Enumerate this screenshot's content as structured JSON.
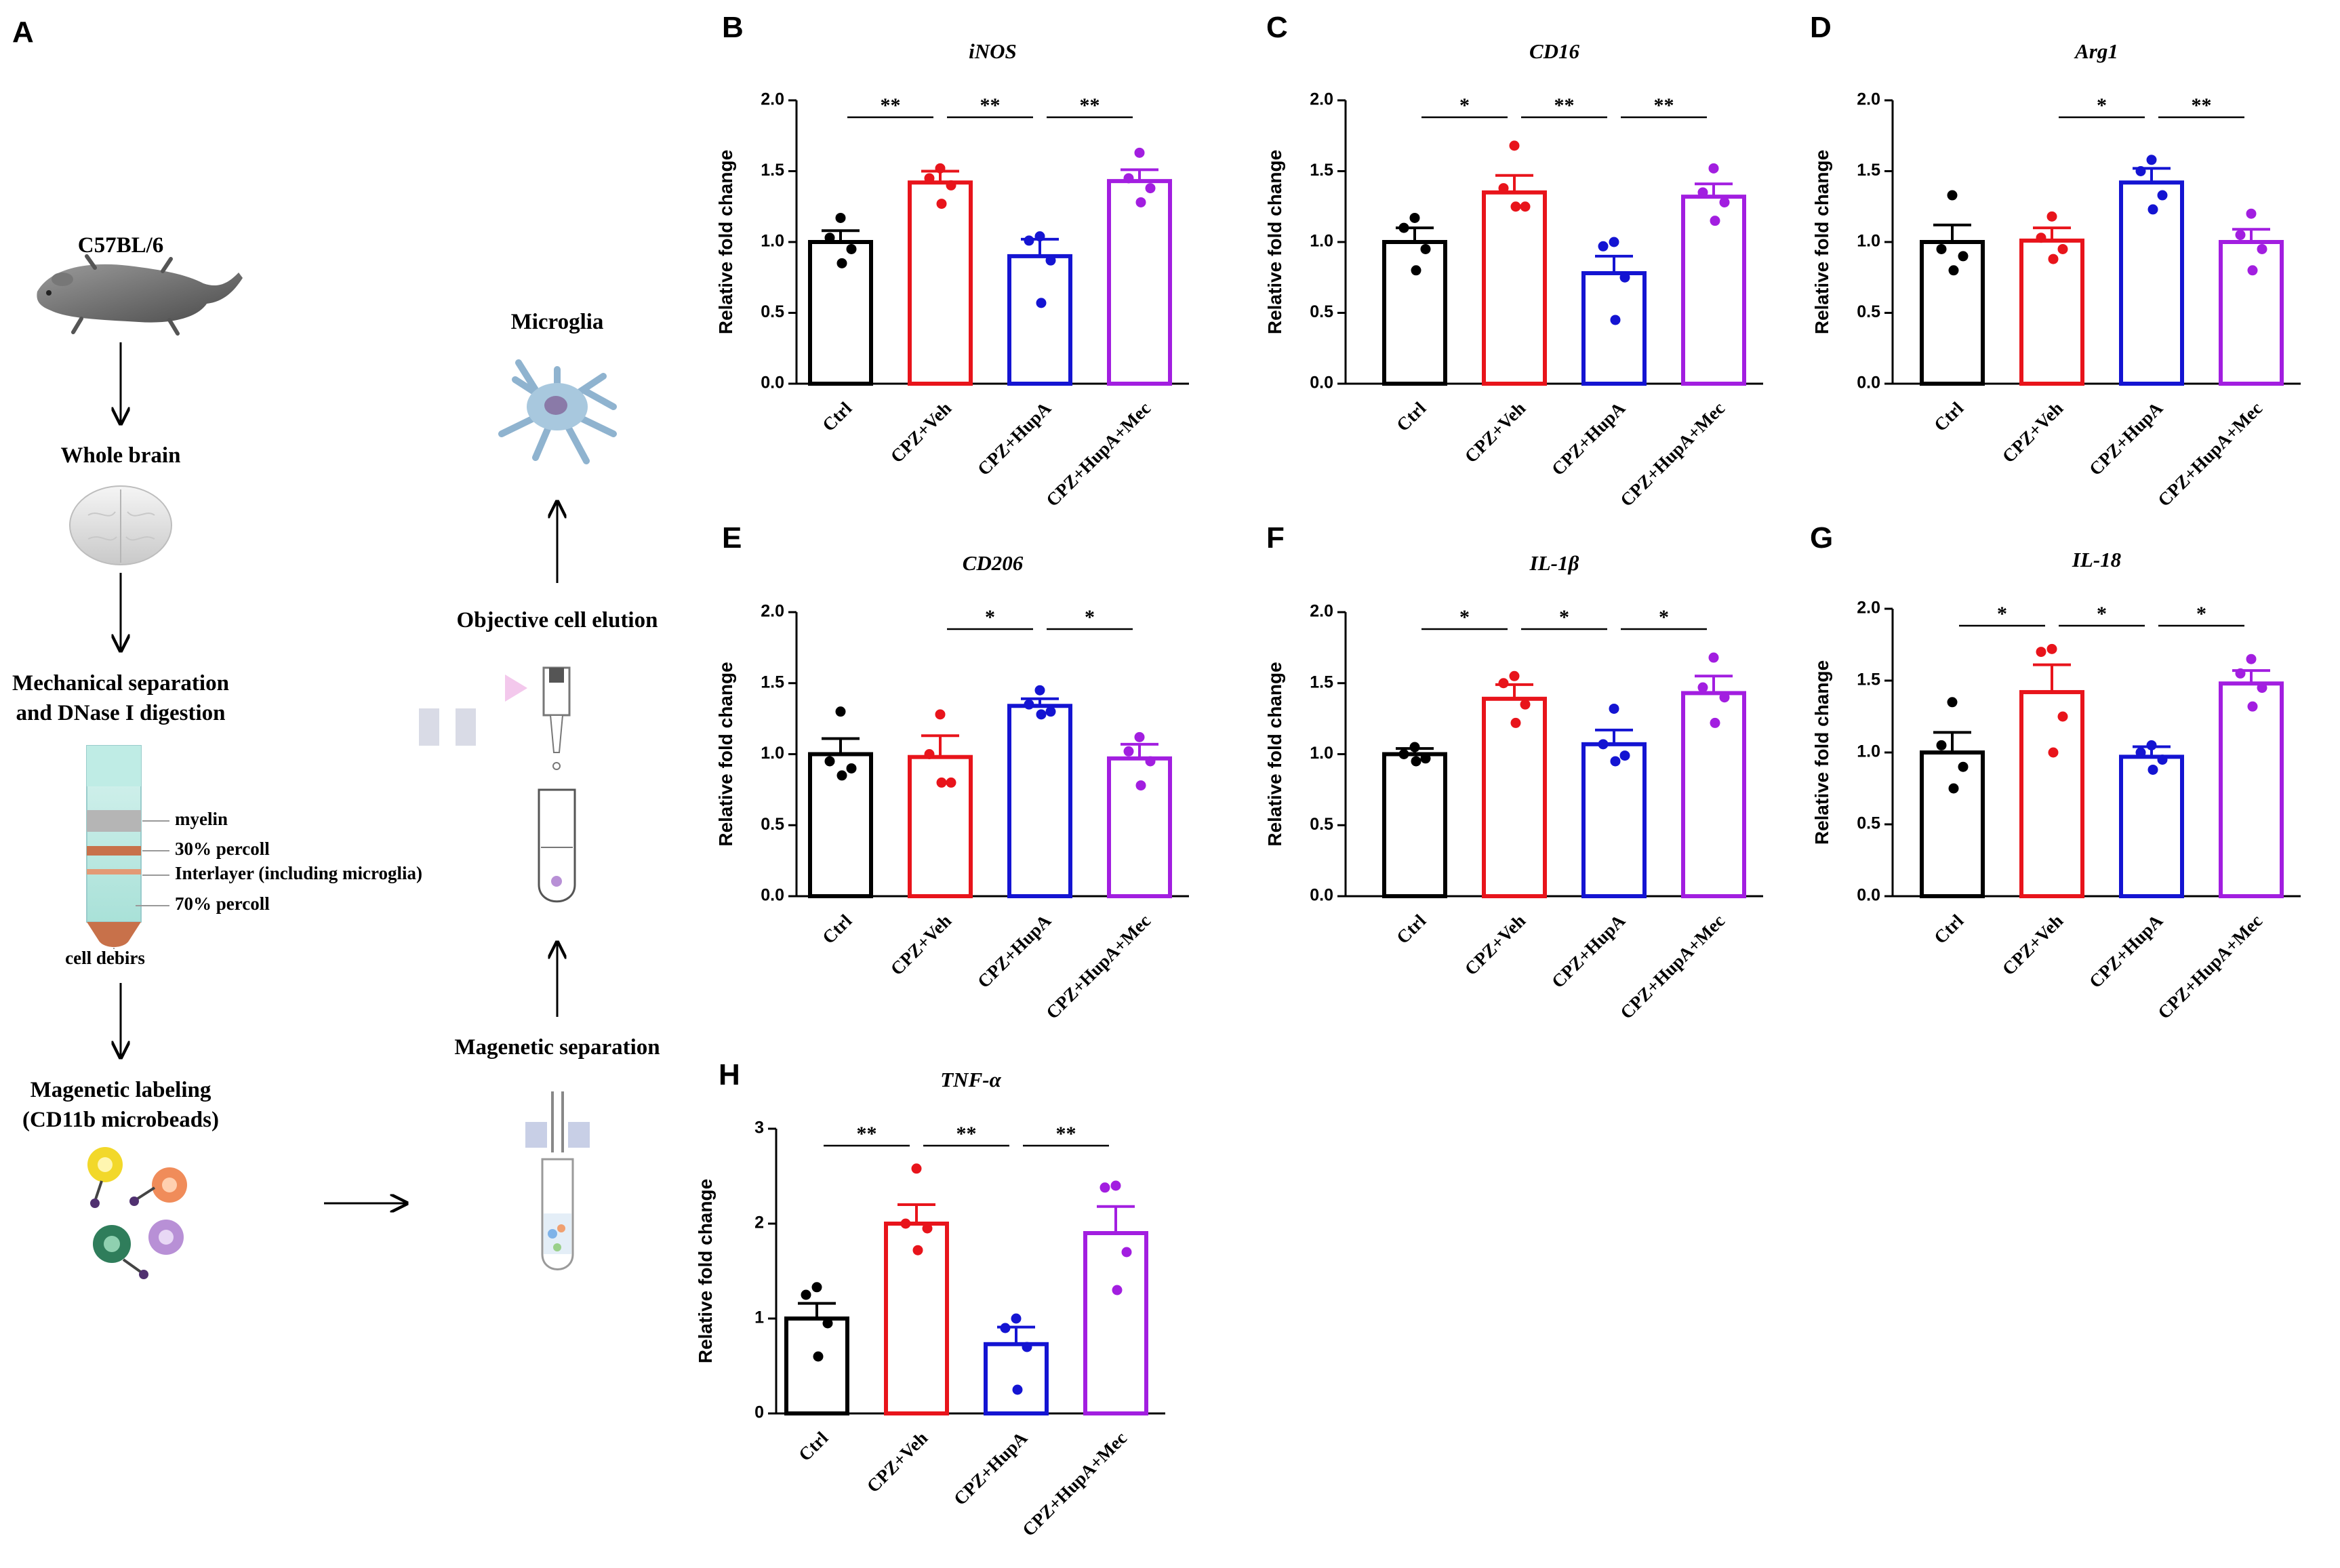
{
  "figure": {
    "panel_a_letter": "A",
    "flowchart": {
      "mouse": "C57BL/6",
      "whole_brain": "Whole brain",
      "mech_sep_line1": "Mechanical separation",
      "mech_sep_line2": "and  DNase I digestion",
      "tube_labels": {
        "myelin": "myelin",
        "percoll30": "30% percoll",
        "interlayer": "Interlayer (including microglia)",
        "percoll70": "70% percoll",
        "debris": "cell debirs"
      },
      "mag_label_line1": "Magenetic  labeling",
      "mag_label_line2": "(CD11b microbeads)",
      "mag_sep": "Magenetic separation",
      "elution": "Objective cell elution",
      "microglia": "Microglia"
    },
    "colors": {
      "Ctrl": "#000000",
      "CPZ+Veh": "#e8141b",
      "CPZ+HupA": "#1414d2",
      "CPZ+HupA+Mec": "#a21ee0"
    }
  },
  "chart_data": [
    {
      "type": "bar",
      "panel": "B",
      "title": "iNOS",
      "ylabel": "Relative fold change",
      "categories": [
        "Ctrl",
        "CPZ+Veh",
        "CPZ+HupA",
        "CPZ+HupA+Mec"
      ],
      "values": [
        1.0,
        1.42,
        0.9,
        1.43
      ],
      "sem": [
        0.08,
        0.08,
        0.12,
        0.08
      ],
      "points": [
        [
          1.17,
          1.03,
          0.95,
          0.85
        ],
        [
          1.52,
          1.45,
          1.4,
          1.27
        ],
        [
          1.04,
          1.01,
          0.87,
          0.57
        ],
        [
          1.63,
          1.45,
          1.38,
          1.28
        ]
      ],
      "ylim": [
        0,
        2.0
      ],
      "yticks": [
        "0.0",
        "0.5",
        "1.0",
        "1.5",
        "2.0"
      ],
      "significance": [
        {
          "from": 0,
          "to": 1,
          "label": "**"
        },
        {
          "from": 1,
          "to": 2,
          "label": "**"
        },
        {
          "from": 2,
          "to": 3,
          "label": "**"
        }
      ]
    },
    {
      "type": "bar",
      "panel": "C",
      "title": "CD16",
      "ylabel": "Relative fold change",
      "categories": [
        "Ctrl",
        "CPZ+Veh",
        "CPZ+HupA",
        "CPZ+HupA+Mec"
      ],
      "values": [
        1.0,
        1.35,
        0.78,
        1.32
      ],
      "sem": [
        0.1,
        0.12,
        0.12,
        0.09
      ],
      "points": [
        [
          1.17,
          1.1,
          0.95,
          0.8
        ],
        [
          1.68,
          1.38,
          1.25,
          1.25
        ],
        [
          1.0,
          0.97,
          0.75,
          0.45
        ],
        [
          1.52,
          1.35,
          1.28,
          1.15
        ]
      ],
      "ylim": [
        0,
        2.0
      ],
      "yticks": [
        "0.0",
        "0.5",
        "1.0",
        "1.5",
        "2.0"
      ],
      "significance": [
        {
          "from": 0,
          "to": 1,
          "label": "*"
        },
        {
          "from": 1,
          "to": 2,
          "label": "**"
        },
        {
          "from": 2,
          "to": 3,
          "label": "**"
        }
      ]
    },
    {
      "type": "bar",
      "panel": "D",
      "title": "Arg1",
      "ylabel": "Relative fold change",
      "categories": [
        "Ctrl",
        "CPZ+Veh",
        "CPZ+HupA",
        "CPZ+HupA+Mec"
      ],
      "values": [
        1.0,
        1.01,
        1.42,
        1.0
      ],
      "sem": [
        0.12,
        0.09,
        0.1,
        0.09
      ],
      "points": [
        [
          1.33,
          0.95,
          0.9,
          0.8
        ],
        [
          1.18,
          1.03,
          0.95,
          0.88
        ],
        [
          1.58,
          1.5,
          1.33,
          1.23
        ],
        [
          1.2,
          1.05,
          0.95,
          0.8
        ]
      ],
      "ylim": [
        0,
        2.0
      ],
      "yticks": [
        "0.0",
        "0.5",
        "1.0",
        "1.5",
        "2.0"
      ],
      "significance": [
        {
          "from": 1,
          "to": 2,
          "label": "*"
        },
        {
          "from": 2,
          "to": 3,
          "label": "**"
        }
      ]
    },
    {
      "type": "bar",
      "panel": "E",
      "title": "CD206",
      "ylabel": "Relative fold change",
      "categories": [
        "Ctrl",
        "CPZ+Veh",
        "CPZ+HupA",
        "CPZ+HupA+Mec"
      ],
      "values": [
        1.0,
        0.98,
        1.34,
        0.97
      ],
      "sem": [
        0.11,
        0.15,
        0.05,
        0.1
      ],
      "points": [
        [
          1.3,
          0.95,
          0.9,
          0.85
        ],
        [
          1.28,
          1.0,
          0.8,
          0.8
        ],
        [
          1.45,
          1.35,
          1.3,
          1.28
        ],
        [
          1.12,
          1.02,
          0.95,
          0.78
        ]
      ],
      "ylim": [
        0,
        2.0
      ],
      "yticks": [
        "0.0",
        "0.5",
        "1.0",
        "1.5",
        "2.0"
      ],
      "significance": [
        {
          "from": 1,
          "to": 2,
          "label": "*"
        },
        {
          "from": 2,
          "to": 3,
          "label": "*"
        }
      ]
    },
    {
      "type": "bar",
      "panel": "F",
      "title": "IL-1β",
      "ylabel": "Relative fold change",
      "categories": [
        "Ctrl",
        "CPZ+Veh",
        "CPZ+HupA",
        "CPZ+HupA+Mec"
      ],
      "values": [
        1.0,
        1.39,
        1.07,
        1.43
      ],
      "sem": [
        0.04,
        0.1,
        0.1,
        0.12
      ],
      "points": [
        [
          1.05,
          1.0,
          0.97,
          0.95
        ],
        [
          1.55,
          1.5,
          1.35,
          1.22
        ],
        [
          1.32,
          1.07,
          0.99,
          0.95
        ],
        [
          1.68,
          1.47,
          1.4,
          1.22
        ]
      ],
      "ylim": [
        0,
        2.0
      ],
      "yticks": [
        "0.0",
        "0.5",
        "1.0",
        "1.5",
        "2.0"
      ],
      "significance": [
        {
          "from": 0,
          "to": 1,
          "label": "*"
        },
        {
          "from": 1,
          "to": 2,
          "label": "*"
        },
        {
          "from": 2,
          "to": 3,
          "label": "*"
        }
      ]
    },
    {
      "type": "bar",
      "panel": "G",
      "title": "IL-18",
      "ylabel": "Relative fold change",
      "categories": [
        "Ctrl",
        "CPZ+Veh",
        "CPZ+HupA",
        "CPZ+HupA+Mec"
      ],
      "values": [
        1.0,
        1.42,
        0.97,
        1.48
      ],
      "sem": [
        0.14,
        0.19,
        0.07,
        0.09
      ],
      "points": [
        [
          1.35,
          1.05,
          0.9,
          0.75
        ],
        [
          1.72,
          1.7,
          1.25,
          1.0
        ],
        [
          1.05,
          1.0,
          0.95,
          0.88
        ],
        [
          1.65,
          1.55,
          1.45,
          1.32
        ]
      ],
      "ylim": [
        0,
        2.0
      ],
      "yticks": [
        "0.0",
        "0.5",
        "1.0",
        "1.5",
        "2.0"
      ],
      "significance": [
        {
          "from": 0,
          "to": 1,
          "label": "*"
        },
        {
          "from": 1,
          "to": 2,
          "label": "*"
        },
        {
          "from": 2,
          "to": 3,
          "label": "*"
        }
      ]
    },
    {
      "type": "bar",
      "panel": "H",
      "title": "TNF-α",
      "ylabel": "Relative fold change",
      "categories": [
        "Ctrl",
        "CPZ+Veh",
        "CPZ+HupA",
        "CPZ+HupA+Mec"
      ],
      "values": [
        1.0,
        2.0,
        0.73,
        1.9
      ],
      "sem": [
        0.16,
        0.2,
        0.18,
        0.28
      ],
      "points": [
        [
          1.33,
          1.25,
          0.95,
          0.6
        ],
        [
          2.58,
          2.0,
          1.95,
          1.72
        ],
        [
          1.0,
          0.9,
          0.7,
          0.25
        ],
        [
          2.4,
          2.38,
          1.7,
          1.3
        ]
      ],
      "ylim": [
        0,
        3
      ],
      "yticks": [
        "0",
        "1",
        "2",
        "3"
      ],
      "significance": [
        {
          "from": 0,
          "to": 1,
          "label": "**"
        },
        {
          "from": 1,
          "to": 2,
          "label": "**"
        },
        {
          "from": 2,
          "to": 3,
          "label": "**"
        }
      ]
    }
  ]
}
